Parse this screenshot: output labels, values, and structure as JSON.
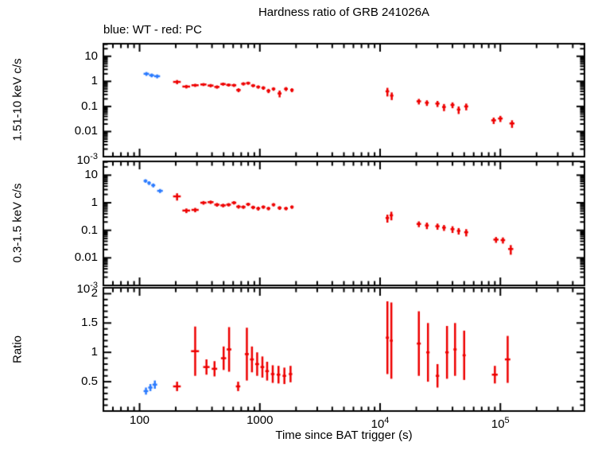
{
  "title": "Hardness ratio of GRB 241026A",
  "legend": "blue: WT - red: PC",
  "colors": {
    "wt": "#2b7bff",
    "pc": "#ee0000",
    "frame": "#000000",
    "background": "#ffffff"
  },
  "chart_data": {
    "type": "scatter",
    "xscale": "log",
    "xlim": [
      50,
      500000
    ],
    "xlabel": "Time since BAT trigger (s)",
    "xticks": [
      {
        "value": 100,
        "label": "100"
      },
      {
        "value": 1000,
        "label": "1000"
      },
      {
        "value": 10000,
        "label": "10^4"
      },
      {
        "value": 100000,
        "label": "10^5"
      }
    ],
    "panels": [
      {
        "ylabel": "1.51-10 keV c/s",
        "yscale": "log",
        "ylim": [
          0.001,
          31.6
        ],
        "yticks": [
          {
            "value": 10,
            "label": "10"
          },
          {
            "value": 1,
            "label": "1"
          },
          {
            "value": 0.1,
            "label": "0.1"
          },
          {
            "value": 0.01,
            "label": "0.01"
          },
          {
            "value": 0.001,
            "label": "10^-3"
          }
        ],
        "series": [
          {
            "name": "WT",
            "color": "wt",
            "points": [
              [
                114,
                2.0,
                6,
                0.35
              ],
              [
                126,
                1.75,
                6,
                0.3
              ],
              [
                140,
                1.6,
                8,
                0.28
              ]
            ]
          },
          {
            "name": "PC",
            "color": "pc",
            "points": [
              [
                205,
                0.95,
                15,
                0.18
              ],
              [
                245,
                0.62,
                18,
                0.1
              ],
              [
                290,
                0.7,
                20,
                0.1
              ],
              [
                340,
                0.75,
                20,
                0.1
              ],
              [
                390,
                0.68,
                22,
                0.1
              ],
              [
                440,
                0.6,
                22,
                0.09
              ],
              [
                495,
                0.78,
                25,
                0.11
              ],
              [
                550,
                0.72,
                25,
                0.1
              ],
              [
                610,
                0.7,
                27,
                0.1
              ],
              [
                665,
                0.45,
                28,
                0.08
              ],
              [
                730,
                0.8,
                30,
                0.12
              ],
              [
                800,
                0.85,
                32,
                0.12
              ],
              [
                880,
                0.68,
                35,
                0.1
              ],
              [
                970,
                0.6,
                36,
                0.09
              ],
              [
                1070,
                0.55,
                40,
                0.09
              ],
              [
                1180,
                0.42,
                42,
                0.08
              ],
              [
                1300,
                0.5,
                45,
                0.08
              ],
              [
                1460,
                0.33,
                55,
                0.1
              ],
              [
                1650,
                0.5,
                60,
                0.09
              ],
              [
                1850,
                0.45,
                60,
                0.08
              ],
              [
                11500,
                0.4,
                400,
                0.15
              ],
              [
                12500,
                0.27,
                400,
                0.09
              ],
              [
                21000,
                0.16,
                900,
                0.04
              ],
              [
                24500,
                0.14,
                900,
                0.035
              ],
              [
                30000,
                0.13,
                1200,
                0.035
              ],
              [
                34000,
                0.095,
                1200,
                0.03
              ],
              [
                40000,
                0.115,
                1500,
                0.03
              ],
              [
                45000,
                0.075,
                1500,
                0.025
              ],
              [
                52000,
                0.1,
                2000,
                0.03
              ],
              [
                88000,
                0.028,
                4000,
                0.008
              ],
              [
                100000,
                0.033,
                4500,
                0.009
              ],
              [
                125000,
                0.021,
                6000,
                0.007
              ]
            ]
          }
        ]
      },
      {
        "ylabel": "0.3-1.5 keV c/s",
        "yscale": "log",
        "ylim": [
          0.001,
          31.6
        ],
        "yticks": [
          {
            "value": 10,
            "label": "10"
          },
          {
            "value": 1,
            "label": "1"
          },
          {
            "value": 0.1,
            "label": "0.1"
          },
          {
            "value": 0.01,
            "label": "0.01"
          },
          {
            "value": 0.001,
            "label": "10^-3"
          }
        ],
        "series": [
          {
            "name": "WT",
            "color": "wt",
            "points": [
              [
                112,
                6.2,
                4,
                0.9
              ],
              [
                120,
                5.2,
                4,
                0.8
              ],
              [
                130,
                4.3,
                5,
                0.7
              ],
              [
                148,
                2.7,
                8,
                0.45
              ]
            ]
          },
          {
            "name": "PC",
            "color": "pc",
            "points": [
              [
                205,
                1.7,
                15,
                0.5
              ],
              [
                245,
                0.52,
                18,
                0.1
              ],
              [
                290,
                0.55,
                20,
                0.1
              ],
              [
                340,
                1.0,
                20,
                0.15
              ],
              [
                390,
                1.05,
                22,
                0.15
              ],
              [
                440,
                0.85,
                22,
                0.13
              ],
              [
                495,
                0.8,
                25,
                0.12
              ],
              [
                550,
                0.85,
                25,
                0.12
              ],
              [
                610,
                1.0,
                27,
                0.14
              ],
              [
                665,
                0.72,
                28,
                0.11
              ],
              [
                730,
                0.7,
                30,
                0.1
              ],
              [
                800,
                0.88,
                32,
                0.12
              ],
              [
                880,
                0.68,
                35,
                0.1
              ],
              [
                970,
                0.62,
                36,
                0.1
              ],
              [
                1070,
                0.7,
                40,
                0.1
              ],
              [
                1180,
                0.62,
                42,
                0.09
              ],
              [
                1300,
                0.85,
                45,
                0.12
              ],
              [
                1460,
                0.65,
                55,
                0.1
              ],
              [
                1650,
                0.62,
                60,
                0.09
              ],
              [
                1850,
                0.7,
                60,
                0.1
              ],
              [
                11500,
                0.28,
                400,
                0.09
              ],
              [
                12400,
                0.35,
                400,
                0.12
              ],
              [
                21000,
                0.17,
                900,
                0.04
              ],
              [
                24500,
                0.15,
                900,
                0.04
              ],
              [
                30000,
                0.14,
                1200,
                0.035
              ],
              [
                34000,
                0.125,
                1200,
                0.03
              ],
              [
                40000,
                0.11,
                1500,
                0.03
              ],
              [
                45000,
                0.095,
                1500,
                0.025
              ],
              [
                52000,
                0.085,
                2000,
                0.025
              ],
              [
                92000,
                0.046,
                4500,
                0.011
              ],
              [
                105000,
                0.044,
                4500,
                0.011
              ],
              [
                122000,
                0.021,
                6000,
                0.008
              ]
            ]
          }
        ]
      },
      {
        "ylabel": "Ratio",
        "yscale": "linear",
        "ylim": [
          0,
          2.1
        ],
        "yticks": [
          {
            "value": 2,
            "label": "2"
          },
          {
            "value": 1.5,
            "label": "1.5"
          },
          {
            "value": 1,
            "label": "1"
          },
          {
            "value": 0.5,
            "label": "0.5"
          }
        ],
        "series": [
          {
            "name": "WT",
            "color": "wt",
            "points": [
              [
                113,
                0.34,
                5,
                0.06
              ],
              [
                123,
                0.4,
                5,
                0.06
              ],
              [
                134,
                0.45,
                6,
                0.07
              ]
            ]
          },
          {
            "name": "PC",
            "color": "pc",
            "points": [
              [
                205,
                0.42,
                15,
                0.08
              ],
              [
                290,
                1.02,
                22,
                0.42
              ],
              [
                360,
                0.75,
                22,
                0.13
              ],
              [
                420,
                0.72,
                22,
                0.13
              ],
              [
                500,
                0.9,
                25,
                0.2
              ],
              [
                555,
                1.05,
                25,
                0.38
              ],
              [
                660,
                0.42,
                28,
                0.08
              ],
              [
                780,
                0.97,
                30,
                0.45
              ],
              [
                860,
                0.88,
                32,
                0.22
              ],
              [
                950,
                0.8,
                35,
                0.2
              ],
              [
                1050,
                0.75,
                38,
                0.18
              ],
              [
                1150,
                0.68,
                40,
                0.16
              ],
              [
                1280,
                0.63,
                45,
                0.15
              ],
              [
                1430,
                0.62,
                50,
                0.15
              ],
              [
                1600,
                0.6,
                55,
                0.14
              ],
              [
                1800,
                0.63,
                60,
                0.14
              ],
              [
                11500,
                1.25,
                350,
                0.62
              ],
              [
                12400,
                1.2,
                350,
                0.65
              ],
              [
                21000,
                1.15,
                800,
                0.55
              ],
              [
                25000,
                1.0,
                800,
                0.5
              ],
              [
                30000,
                0.6,
                1000,
                0.2
              ],
              [
                36000,
                1.0,
                1200,
                0.45
              ],
              [
                42000,
                1.05,
                1300,
                0.45
              ],
              [
                50000,
                0.95,
                1500,
                0.42
              ],
              [
                90000,
                0.62,
                5000,
                0.15
              ],
              [
                115000,
                0.88,
                6000,
                0.4
              ]
            ]
          }
        ]
      }
    ]
  }
}
